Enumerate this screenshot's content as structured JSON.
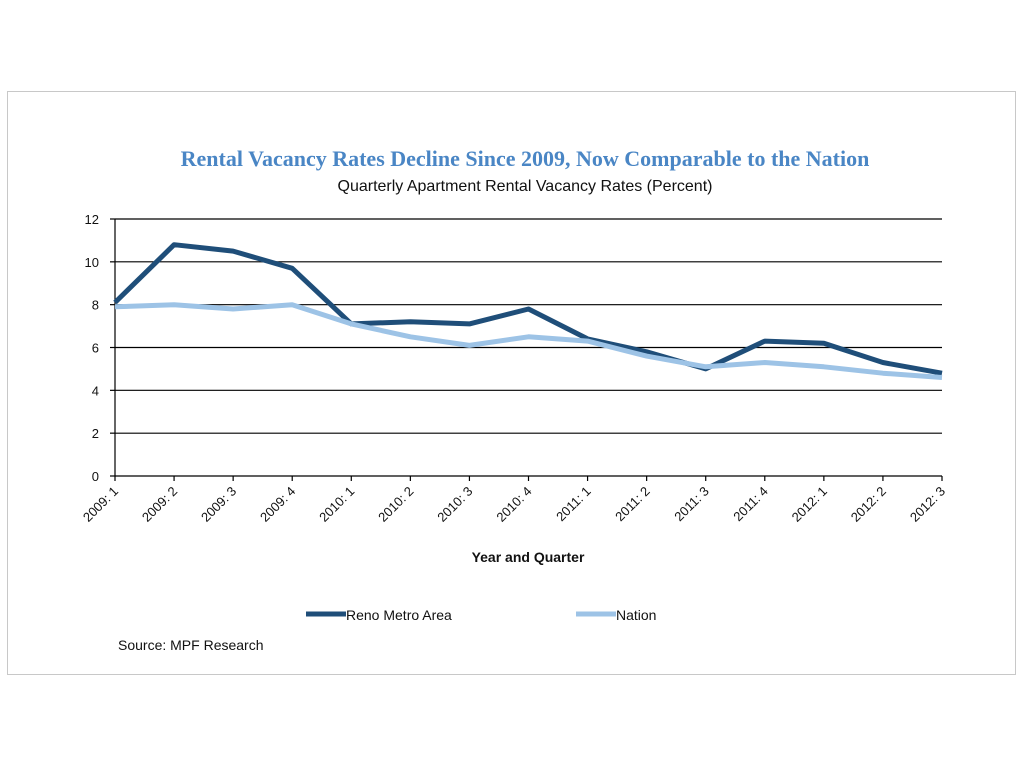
{
  "chart_data": {
    "type": "line",
    "title": "Rental Vacancy Rates Decline Since 2009,  Now Comparable to the Nation",
    "subtitle": "Quarterly Apartment Rental Vacancy Rates (Percent)",
    "xlabel": "Year and Quarter",
    "ylabel": "",
    "categories": [
      "2009: 1",
      "2009: 2",
      "2009: 3",
      "2009: 4",
      "2010: 1",
      "2010: 2",
      "2010: 3",
      "2010: 4",
      "2011: 1",
      "2011: 2",
      "2011: 3",
      "2011: 4",
      "2012: 1",
      "2012: 2",
      "2012: 3"
    ],
    "ylim": [
      0,
      12
    ],
    "yticks": [
      "0",
      "2",
      "4",
      "6",
      "8",
      "10",
      "12"
    ],
    "grid": true,
    "legend_position": "bottom",
    "series": [
      {
        "name": "Reno Metro Area",
        "color": "#1f4e79",
        "values": [
          8.1,
          10.8,
          10.5,
          9.7,
          7.1,
          7.2,
          7.1,
          7.8,
          6.4,
          5.8,
          5.0,
          6.3,
          6.2,
          5.3,
          4.8
        ]
      },
      {
        "name": "Nation",
        "color": "#9dc3e6",
        "values": [
          7.9,
          8.0,
          7.8,
          8.0,
          7.1,
          6.5,
          6.1,
          6.5,
          6.3,
          5.6,
          5.1,
          5.3,
          5.1,
          4.8,
          4.6
        ]
      }
    ],
    "source": "Source: MPF Research"
  }
}
